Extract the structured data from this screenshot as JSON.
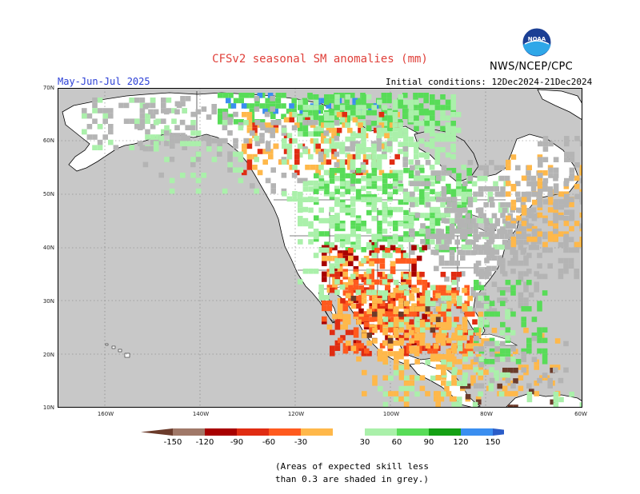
{
  "title": "CFSv2 seasonal SM anomalies (mm)",
  "agency": "NWS/NCEP/CPC",
  "logo_text": "NOAA",
  "period": "May-Jun-Jul 2025",
  "initial_conditions": "Initial conditions: 12Dec2024-21Dec2024",
  "lat_ticks": [
    "70N",
    "60N",
    "50N",
    "40N",
    "30N",
    "20N",
    "10N"
  ],
  "lon_ticks": [
    "160W",
    "140W",
    "120W",
    "100W",
    "80W",
    "60W"
  ],
  "legend": {
    "labels": [
      "-150",
      "-120",
      "-90",
      "-60",
      "-30",
      "30",
      "60",
      "90",
      "120",
      "150"
    ],
    "colors": [
      "#6b3b2b",
      "#a07868",
      "#a80000",
      "#e02c12",
      "#ff5a1e",
      "#ffb84a",
      "#ffffff",
      "#aaf0aa",
      "#58dc58",
      "#14a014",
      "#3a8ef0",
      "#2a5cc8"
    ]
  },
  "note_line1": "(Areas of expected skill less",
  "note_line2": "than 0.3 are shaded in grey.)",
  "map_colors": {
    "ocean": "#c8c8c8",
    "land": "#ffffff",
    "skill_grey": "#b4b4b4"
  }
}
